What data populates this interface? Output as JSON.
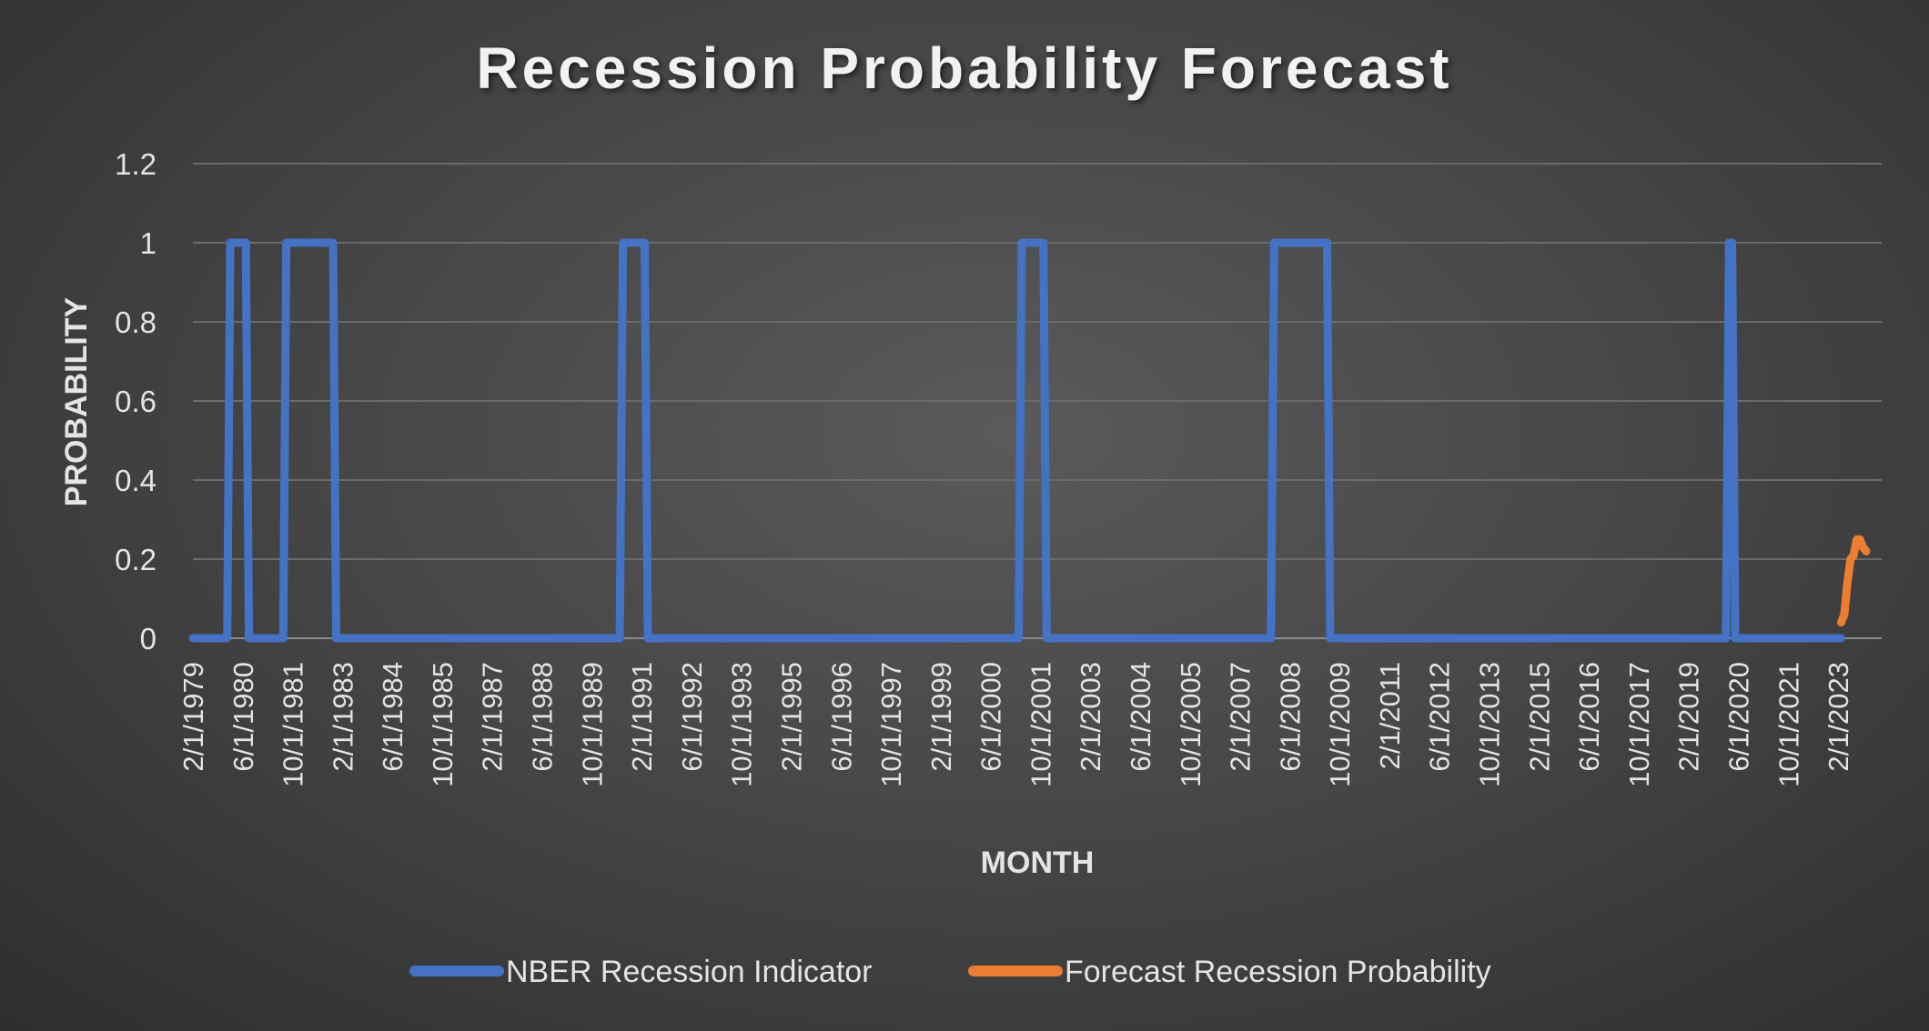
{
  "chart_data": {
    "type": "line",
    "title": "Recession Probability Forecast",
    "xlabel": "MONTH",
    "ylabel": "PROBABILITY",
    "ylim": [
      0,
      1.2
    ],
    "yticks": [
      "0",
      "0.2",
      "0.4",
      "0.6",
      "0.8",
      "1",
      "1.2"
    ],
    "xlim": [
      "1979-02",
      "2024-04"
    ],
    "x_tick_labels": [
      "2/1/1979",
      "6/1/1980",
      "10/1/1981",
      "2/1/1983",
      "6/1/1984",
      "10/1/1985",
      "2/1/1987",
      "6/1/1988",
      "10/1/1989",
      "2/1/1991",
      "6/1/1992",
      "10/1/1993",
      "2/1/1995",
      "6/1/1996",
      "10/1/1997",
      "2/1/1999",
      "6/1/2000",
      "10/1/2001",
      "2/1/2003",
      "6/1/2004",
      "10/1/2005",
      "2/1/2007",
      "6/1/2008",
      "10/1/2009",
      "2/1/2011",
      "6/1/2012",
      "10/1/2013",
      "2/1/2015",
      "6/1/2016",
      "10/1/2017",
      "2/1/2019",
      "6/1/2020",
      "10/1/2021",
      "2/1/2023"
    ],
    "grid": true,
    "legend_position": "bottom",
    "series": [
      {
        "name": "NBER Recession Indicator",
        "color": "#4472c4",
        "points": [
          [
            "1979-02",
            0
          ],
          [
            "1980-01",
            0
          ],
          [
            "1980-02",
            1
          ],
          [
            "1980-07",
            1
          ],
          [
            "1980-08",
            0
          ],
          [
            "1981-07",
            0
          ],
          [
            "1981-08",
            1
          ],
          [
            "1982-11",
            1
          ],
          [
            "1982-12",
            0
          ],
          [
            "1990-07",
            0
          ],
          [
            "1990-08",
            1
          ],
          [
            "1991-03",
            1
          ],
          [
            "1991-04",
            0
          ],
          [
            "2001-03",
            0
          ],
          [
            "2001-04",
            1
          ],
          [
            "2001-11",
            1
          ],
          [
            "2001-12",
            0
          ],
          [
            "2007-12",
            0
          ],
          [
            "2008-01",
            1
          ],
          [
            "2009-06",
            1
          ],
          [
            "2009-07",
            0
          ],
          [
            "2020-02",
            0
          ],
          [
            "2020-03",
            1
          ],
          [
            "2020-04",
            1
          ],
          [
            "2020-05",
            0
          ],
          [
            "2023-03",
            0
          ]
        ]
      },
      {
        "name": "Forecast Recession Probability",
        "color": "#ed7d31",
        "points": [
          [
            "2023-03",
            0.04
          ],
          [
            "2023-04",
            0.06
          ],
          [
            "2023-05",
            0.14
          ],
          [
            "2023-06",
            0.2
          ],
          [
            "2023-07",
            0.21
          ],
          [
            "2023-08",
            0.25
          ],
          [
            "2023-09",
            0.25
          ],
          [
            "2023-10",
            0.23
          ],
          [
            "2023-11",
            0.22
          ]
        ]
      }
    ]
  }
}
